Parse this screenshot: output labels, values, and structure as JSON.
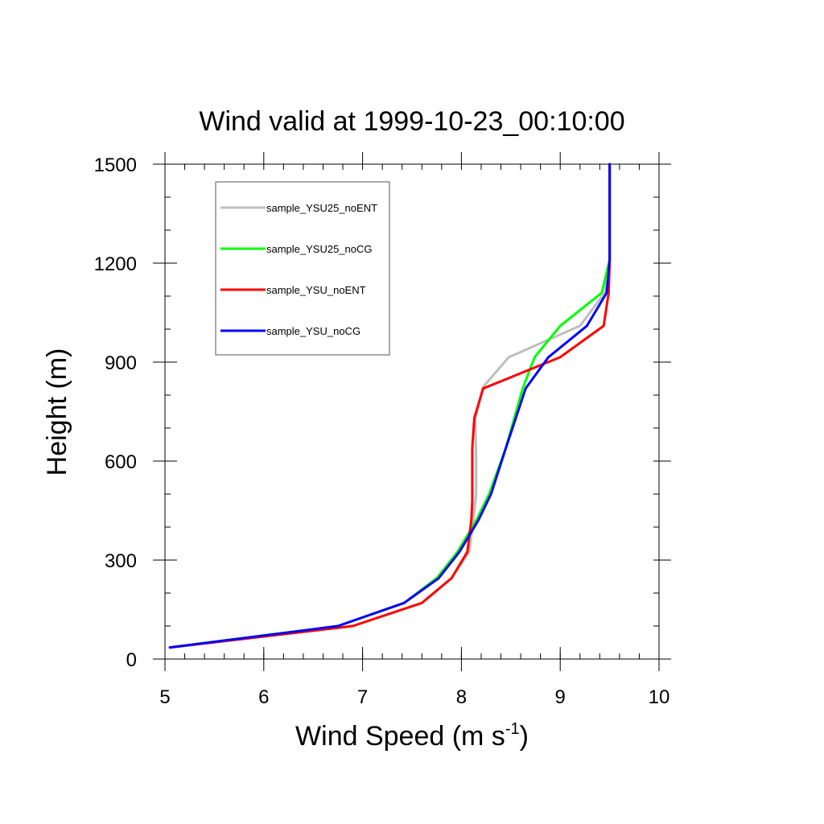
{
  "chart_data": {
    "type": "line",
    "title": "Wind valid at 1999-10-23_00:10:00",
    "xlabel": "Wind Speed (m s",
    "xlabel_sup": "-1",
    "xlabel_end": ")",
    "ylabel": "Height (m)",
    "xlim": [
      5,
      10
    ],
    "ylim": [
      0,
      1500
    ],
    "xticks": [
      5,
      6,
      7,
      8,
      9,
      10
    ],
    "yticks": [
      0,
      300,
      600,
      900,
      1200,
      1500
    ],
    "xtick_labels": [
      "5",
      "6",
      "7",
      "8",
      "9",
      "10"
    ],
    "ytick_labels": [
      "0",
      "300",
      "600",
      "900",
      "1200",
      "1500"
    ],
    "legend_position": "top-left",
    "series": [
      {
        "name": "sample_YSU25_noENT",
        "color": "#bebebe",
        "points": [
          [
            5.05,
            35
          ],
          [
            6.9,
            100
          ],
          [
            7.6,
            170
          ],
          [
            7.9,
            245
          ],
          [
            8.08,
            325
          ],
          [
            8.12,
            420
          ],
          [
            8.15,
            500
          ],
          [
            8.15,
            600
          ],
          [
            8.14,
            730
          ],
          [
            8.22,
            825
          ],
          [
            8.48,
            915
          ],
          [
            9.2,
            1010
          ],
          [
            9.45,
            1110
          ],
          [
            9.5,
            1200
          ],
          [
            9.5,
            1300
          ],
          [
            9.5,
            1500
          ]
        ]
      },
      {
        "name": "sample_YSU25_noCG",
        "color": "#00ff00",
        "points": [
          [
            5.05,
            35
          ],
          [
            6.75,
            100
          ],
          [
            7.42,
            170
          ],
          [
            7.75,
            245
          ],
          [
            7.96,
            325
          ],
          [
            8.15,
            420
          ],
          [
            8.28,
            500
          ],
          [
            8.45,
            640
          ],
          [
            8.62,
            820
          ],
          [
            8.74,
            915
          ],
          [
            9.0,
            1010
          ],
          [
            9.42,
            1110
          ],
          [
            9.5,
            1210
          ],
          [
            9.5,
            1300
          ],
          [
            9.5,
            1500
          ]
        ]
      },
      {
        "name": "sample_YSU_noENT",
        "color": "#ff0000",
        "points": [
          [
            5.05,
            35
          ],
          [
            6.9,
            100
          ],
          [
            7.6,
            170
          ],
          [
            7.9,
            245
          ],
          [
            8.06,
            325
          ],
          [
            8.1,
            420
          ],
          [
            8.11,
            480
          ],
          [
            8.11,
            640
          ],
          [
            8.13,
            730
          ],
          [
            8.22,
            820
          ],
          [
            9.0,
            915
          ],
          [
            9.44,
            1010
          ],
          [
            9.49,
            1110
          ],
          [
            9.5,
            1200
          ],
          [
            9.5,
            1300
          ],
          [
            9.5,
            1500
          ]
        ]
      },
      {
        "name": "sample_YSU_noCG",
        "color": "#0000ff",
        "points": [
          [
            5.05,
            35
          ],
          [
            6.75,
            100
          ],
          [
            7.42,
            170
          ],
          [
            7.77,
            245
          ],
          [
            7.98,
            325
          ],
          [
            8.17,
            420
          ],
          [
            8.3,
            500
          ],
          [
            8.45,
            640
          ],
          [
            8.65,
            820
          ],
          [
            8.88,
            915
          ],
          [
            9.27,
            1010
          ],
          [
            9.47,
            1110
          ],
          [
            9.5,
            1210
          ],
          [
            9.5,
            1300
          ],
          [
            9.5,
            1500
          ]
        ]
      }
    ]
  }
}
